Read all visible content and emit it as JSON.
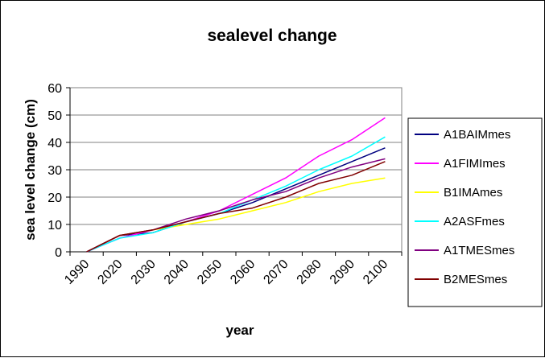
{
  "chart_data": {
    "type": "line",
    "title": "sealevel change",
    "xlabel": "year",
    "ylabel": "sea level change (cm)",
    "categories": [
      "1990",
      "2020",
      "2030",
      "2040",
      "2050",
      "2060",
      "2070",
      "2080",
      "2090",
      "2100"
    ],
    "ylim": [
      0,
      60
    ],
    "yticks": [
      0,
      10,
      20,
      30,
      40,
      50,
      60
    ],
    "grid": true,
    "legend_position": "right",
    "series": [
      {
        "name": "A1BAIMmes",
        "color": "#000080",
        "values": [
          0,
          6,
          7,
          11,
          14,
          18,
          23,
          28,
          33,
          38
        ]
      },
      {
        "name": "A1FIMImes",
        "color": "#ff00ff",
        "values": [
          0,
          5,
          8,
          11,
          15,
          21,
          27,
          35,
          41,
          49
        ]
      },
      {
        "name": "B1IMAmes",
        "color": "#ffff00",
        "values": [
          0,
          6,
          8,
          10,
          12,
          15,
          18,
          22,
          25,
          27
        ]
      },
      {
        "name": "A2ASFmes",
        "color": "#00ffff",
        "values": [
          0,
          5,
          7,
          11,
          14,
          19,
          24,
          30,
          35,
          42
        ]
      },
      {
        "name": "A1TMESmes",
        "color": "#800080",
        "values": [
          0,
          6,
          8,
          12,
          15,
          19,
          22,
          27,
          31,
          34
        ]
      },
      {
        "name": "B2MESmes",
        "color": "#800000",
        "values": [
          0,
          6,
          8,
          11,
          14,
          16,
          20,
          25,
          28,
          33
        ]
      }
    ]
  }
}
